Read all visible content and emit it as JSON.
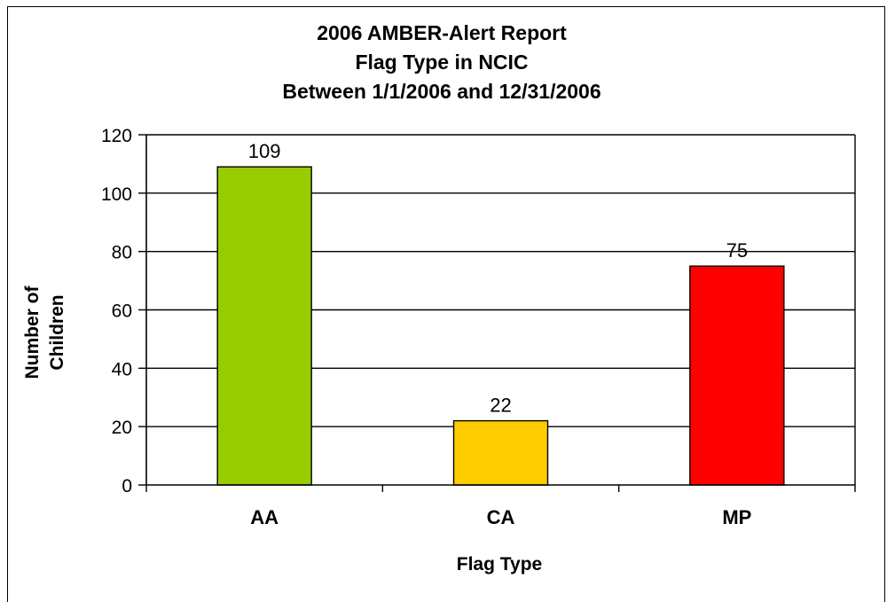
{
  "chart_data": {
    "type": "bar",
    "title_lines": [
      "2006 AMBER-Alert Report",
      "Flag Type in NCIC",
      "Between 1/1/2006 and 12/31/2006"
    ],
    "categories": [
      "AA",
      "CA",
      "MP"
    ],
    "values": [
      109,
      22,
      75
    ],
    "data_labels": [
      "109",
      "22",
      "75"
    ],
    "bar_colors": [
      "#99cc00",
      "#ffcc00",
      "#ff0000"
    ],
    "xlabel": "Flag Type",
    "ylabel_lines": [
      "Number of",
      "Children"
    ],
    "ylim": [
      0,
      120
    ],
    "yticks": [
      0,
      20,
      40,
      60,
      80,
      100,
      120
    ],
    "ytick_labels": [
      "0",
      "20",
      "40",
      "60",
      "80",
      "100",
      "120"
    ],
    "grid": true,
    "legend": "none"
  }
}
